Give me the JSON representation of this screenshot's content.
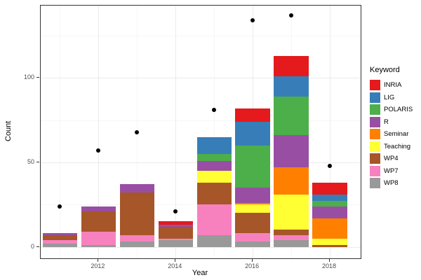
{
  "chart_data": {
    "type": "bar",
    "variant": "stacked-bars-with-scatter-points",
    "title": "",
    "xlabel": "Year",
    "ylabel": "Count",
    "legend_title": "Keyword",
    "legend_position": "right",
    "x": [
      2011,
      2012,
      2013,
      2014,
      2015,
      2016,
      2017,
      2018
    ],
    "series": [
      {
        "name": "INRIA",
        "color": "#E41A1C",
        "values": [
          0,
          0,
          0,
          2,
          0,
          8,
          12,
          7
        ]
      },
      {
        "name": "LIG",
        "color": "#377EB8",
        "values": [
          0,
          0,
          0,
          0,
          10,
          14,
          12,
          4
        ]
      },
      {
        "name": "POLARIS",
        "color": "#4DAF4A",
        "values": [
          0,
          0,
          0,
          0,
          4,
          25,
          23,
          3
        ]
      },
      {
        "name": "R",
        "color": "#984EA3",
        "values": [
          1,
          3,
          5,
          1,
          6,
          9,
          19,
          7
        ]
      },
      {
        "name": "Seminar",
        "color": "#FF7F00",
        "values": [
          0,
          0,
          0,
          0,
          0,
          1,
          16,
          12
        ]
      },
      {
        "name": "Teaching",
        "color": "#FFFF33",
        "values": [
          0,
          0,
          0,
          0,
          7,
          5,
          21,
          4
        ]
      },
      {
        "name": "WP4",
        "color": "#A65628",
        "values": [
          3,
          12,
          25,
          7,
          13,
          12,
          3,
          1
        ]
      },
      {
        "name": "WP7",
        "color": "#F781BF",
        "values": [
          2,
          8,
          4,
          1,
          18,
          5,
          3,
          0
        ]
      },
      {
        "name": "WP8",
        "color": "#999999",
        "values": [
          2,
          1,
          3,
          4,
          7,
          3,
          4,
          0
        ]
      }
    ],
    "stack_order_bottom_to_top": [
      "WP8",
      "WP7",
      "WP4",
      "Teaching",
      "Seminar",
      "R",
      "POLARIS",
      "LIG",
      "INRIA"
    ],
    "bar_totals": [
      8,
      24,
      37,
      15,
      65,
      82,
      113,
      38
    ],
    "points": {
      "marker": "circle",
      "color": "#000000",
      "values": [
        24,
        57,
        68,
        21,
        81,
        134,
        137,
        48
      ]
    },
    "bar_width": 0.9,
    "xlim": [
      2010.5,
      2018.8
    ],
    "ylim": [
      -6.8,
      142.8
    ],
    "x_major_ticks": [
      2012,
      2014,
      2016,
      2018
    ],
    "x_minor_gridlines": [
      2011,
      2013,
      2015,
      2017
    ],
    "y_major_ticks": [
      0,
      50,
      100
    ],
    "y_minor_gridlines": [
      25,
      75,
      125
    ],
    "grid": true,
    "colors": {
      "panel_border": "#333333",
      "grid_major": "#ebebeb",
      "grid_minor": "#f6f6f6",
      "tick_label": "#4d4d4d",
      "axis_title": "#000000",
      "panel_bg": "#ffffff",
      "figure_bg": "#ffffff",
      "point": "#000000"
    }
  }
}
